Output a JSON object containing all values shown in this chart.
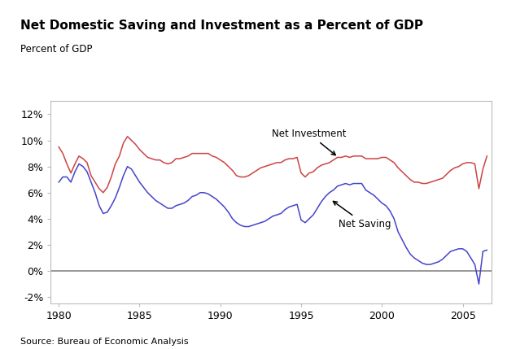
{
  "title": "Net Domestic Saving and Investment as a Percent of GDP",
  "ylabel": "Percent of GDP",
  "source": "Source: Bureau of Economic Analysis",
  "xlim": [
    1979.5,
    2006.8
  ],
  "ylim": [
    -0.025,
    0.13
  ],
  "yticks": [
    -0.02,
    0.0,
    0.02,
    0.04,
    0.06,
    0.08,
    0.1,
    0.12
  ],
  "ytick_labels": [
    "-2%",
    "0%",
    "2%",
    "4%",
    "6%",
    "8%",
    "10%",
    "12%"
  ],
  "xticks": [
    1980,
    1985,
    1990,
    1995,
    2000,
    2005
  ],
  "investment_color": "#cc4444",
  "saving_color": "#4444cc",
  "zero_line_color": "#888888",
  "investment_data": [
    [
      1980.0,
      0.095
    ],
    [
      1980.25,
      0.09
    ],
    [
      1980.5,
      0.082
    ],
    [
      1980.75,
      0.075
    ],
    [
      1981.0,
      0.082
    ],
    [
      1981.25,
      0.088
    ],
    [
      1981.5,
      0.086
    ],
    [
      1981.75,
      0.083
    ],
    [
      1982.0,
      0.073
    ],
    [
      1982.25,
      0.068
    ],
    [
      1982.5,
      0.063
    ],
    [
      1982.75,
      0.06
    ],
    [
      1983.0,
      0.064
    ],
    [
      1983.25,
      0.072
    ],
    [
      1983.5,
      0.082
    ],
    [
      1983.75,
      0.088
    ],
    [
      1984.0,
      0.098
    ],
    [
      1984.25,
      0.103
    ],
    [
      1984.5,
      0.1
    ],
    [
      1984.75,
      0.097
    ],
    [
      1985.0,
      0.093
    ],
    [
      1985.25,
      0.09
    ],
    [
      1985.5,
      0.087
    ],
    [
      1985.75,
      0.086
    ],
    [
      1986.0,
      0.085
    ],
    [
      1986.25,
      0.085
    ],
    [
      1986.5,
      0.083
    ],
    [
      1986.75,
      0.082
    ],
    [
      1987.0,
      0.083
    ],
    [
      1987.25,
      0.086
    ],
    [
      1987.5,
      0.086
    ],
    [
      1987.75,
      0.087
    ],
    [
      1988.0,
      0.088
    ],
    [
      1988.25,
      0.09
    ],
    [
      1988.5,
      0.09
    ],
    [
      1988.75,
      0.09
    ],
    [
      1989.0,
      0.09
    ],
    [
      1989.25,
      0.09
    ],
    [
      1989.5,
      0.088
    ],
    [
      1989.75,
      0.087
    ],
    [
      1990.0,
      0.085
    ],
    [
      1990.25,
      0.083
    ],
    [
      1990.5,
      0.08
    ],
    [
      1990.75,
      0.077
    ],
    [
      1991.0,
      0.073
    ],
    [
      1991.25,
      0.072
    ],
    [
      1991.5,
      0.072
    ],
    [
      1991.75,
      0.073
    ],
    [
      1992.0,
      0.075
    ],
    [
      1992.25,
      0.077
    ],
    [
      1992.5,
      0.079
    ],
    [
      1992.75,
      0.08
    ],
    [
      1993.0,
      0.081
    ],
    [
      1993.25,
      0.082
    ],
    [
      1993.5,
      0.083
    ],
    [
      1993.75,
      0.083
    ],
    [
      1994.0,
      0.085
    ],
    [
      1994.25,
      0.086
    ],
    [
      1994.5,
      0.086
    ],
    [
      1994.75,
      0.087
    ],
    [
      1995.0,
      0.075
    ],
    [
      1995.25,
      0.072
    ],
    [
      1995.5,
      0.075
    ],
    [
      1995.75,
      0.076
    ],
    [
      1996.0,
      0.079
    ],
    [
      1996.25,
      0.081
    ],
    [
      1996.5,
      0.082
    ],
    [
      1996.75,
      0.083
    ],
    [
      1997.0,
      0.085
    ],
    [
      1997.25,
      0.087
    ],
    [
      1997.5,
      0.087
    ],
    [
      1997.75,
      0.088
    ],
    [
      1998.0,
      0.087
    ],
    [
      1998.25,
      0.088
    ],
    [
      1998.5,
      0.088
    ],
    [
      1998.75,
      0.088
    ],
    [
      1999.0,
      0.086
    ],
    [
      1999.25,
      0.086
    ],
    [
      1999.5,
      0.086
    ],
    [
      1999.75,
      0.086
    ],
    [
      2000.0,
      0.087
    ],
    [
      2000.25,
      0.087
    ],
    [
      2000.5,
      0.085
    ],
    [
      2000.75,
      0.083
    ],
    [
      2001.0,
      0.079
    ],
    [
      2001.25,
      0.076
    ],
    [
      2001.5,
      0.073
    ],
    [
      2001.75,
      0.07
    ],
    [
      2002.0,
      0.068
    ],
    [
      2002.25,
      0.068
    ],
    [
      2002.5,
      0.067
    ],
    [
      2002.75,
      0.067
    ],
    [
      2003.0,
      0.068
    ],
    [
      2003.25,
      0.069
    ],
    [
      2003.5,
      0.07
    ],
    [
      2003.75,
      0.071
    ],
    [
      2004.0,
      0.074
    ],
    [
      2004.25,
      0.077
    ],
    [
      2004.5,
      0.079
    ],
    [
      2004.75,
      0.08
    ],
    [
      2005.0,
      0.082
    ],
    [
      2005.25,
      0.083
    ],
    [
      2005.5,
      0.083
    ],
    [
      2005.75,
      0.082
    ],
    [
      2006.0,
      0.063
    ],
    [
      2006.25,
      0.078
    ],
    [
      2006.5,
      0.088
    ]
  ],
  "saving_data": [
    [
      1980.0,
      0.068
    ],
    [
      1980.25,
      0.072
    ],
    [
      1980.5,
      0.072
    ],
    [
      1980.75,
      0.068
    ],
    [
      1981.0,
      0.076
    ],
    [
      1981.25,
      0.082
    ],
    [
      1981.5,
      0.08
    ],
    [
      1981.75,
      0.076
    ],
    [
      1982.0,
      0.068
    ],
    [
      1982.25,
      0.06
    ],
    [
      1982.5,
      0.05
    ],
    [
      1982.75,
      0.044
    ],
    [
      1983.0,
      0.045
    ],
    [
      1983.25,
      0.05
    ],
    [
      1983.5,
      0.056
    ],
    [
      1983.75,
      0.064
    ],
    [
      1984.0,
      0.073
    ],
    [
      1984.25,
      0.08
    ],
    [
      1984.5,
      0.078
    ],
    [
      1984.75,
      0.073
    ],
    [
      1985.0,
      0.068
    ],
    [
      1985.25,
      0.064
    ],
    [
      1985.5,
      0.06
    ],
    [
      1985.75,
      0.057
    ],
    [
      1986.0,
      0.054
    ],
    [
      1986.25,
      0.052
    ],
    [
      1986.5,
      0.05
    ],
    [
      1986.75,
      0.048
    ],
    [
      1987.0,
      0.048
    ],
    [
      1987.25,
      0.05
    ],
    [
      1987.5,
      0.051
    ],
    [
      1987.75,
      0.052
    ],
    [
      1988.0,
      0.054
    ],
    [
      1988.25,
      0.057
    ],
    [
      1988.5,
      0.058
    ],
    [
      1988.75,
      0.06
    ],
    [
      1989.0,
      0.06
    ],
    [
      1989.25,
      0.059
    ],
    [
      1989.5,
      0.057
    ],
    [
      1989.75,
      0.055
    ],
    [
      1990.0,
      0.052
    ],
    [
      1990.25,
      0.049
    ],
    [
      1990.5,
      0.045
    ],
    [
      1990.75,
      0.04
    ],
    [
      1991.0,
      0.037
    ],
    [
      1991.25,
      0.035
    ],
    [
      1991.5,
      0.034
    ],
    [
      1991.75,
      0.034
    ],
    [
      1992.0,
      0.035
    ],
    [
      1992.25,
      0.036
    ],
    [
      1992.5,
      0.037
    ],
    [
      1992.75,
      0.038
    ],
    [
      1993.0,
      0.04
    ],
    [
      1993.25,
      0.042
    ],
    [
      1993.5,
      0.043
    ],
    [
      1993.75,
      0.044
    ],
    [
      1994.0,
      0.047
    ],
    [
      1994.25,
      0.049
    ],
    [
      1994.5,
      0.05
    ],
    [
      1994.75,
      0.051
    ],
    [
      1995.0,
      0.039
    ],
    [
      1995.25,
      0.037
    ],
    [
      1995.5,
      0.04
    ],
    [
      1995.75,
      0.043
    ],
    [
      1996.0,
      0.048
    ],
    [
      1996.25,
      0.053
    ],
    [
      1996.5,
      0.057
    ],
    [
      1996.75,
      0.06
    ],
    [
      1997.0,
      0.062
    ],
    [
      1997.25,
      0.065
    ],
    [
      1997.5,
      0.066
    ],
    [
      1997.75,
      0.067
    ],
    [
      1998.0,
      0.066
    ],
    [
      1998.25,
      0.067
    ],
    [
      1998.5,
      0.067
    ],
    [
      1998.75,
      0.067
    ],
    [
      1999.0,
      0.062
    ],
    [
      1999.25,
      0.06
    ],
    [
      1999.5,
      0.058
    ],
    [
      1999.75,
      0.055
    ],
    [
      2000.0,
      0.052
    ],
    [
      2000.25,
      0.05
    ],
    [
      2000.5,
      0.046
    ],
    [
      2000.75,
      0.04
    ],
    [
      2001.0,
      0.03
    ],
    [
      2001.25,
      0.024
    ],
    [
      2001.5,
      0.018
    ],
    [
      2001.75,
      0.013
    ],
    [
      2002.0,
      0.01
    ],
    [
      2002.25,
      0.008
    ],
    [
      2002.5,
      0.006
    ],
    [
      2002.75,
      0.005
    ],
    [
      2003.0,
      0.005
    ],
    [
      2003.25,
      0.006
    ],
    [
      2003.5,
      0.007
    ],
    [
      2003.75,
      0.009
    ],
    [
      2004.0,
      0.012
    ],
    [
      2004.25,
      0.015
    ],
    [
      2004.5,
      0.016
    ],
    [
      2004.75,
      0.017
    ],
    [
      2005.0,
      0.017
    ],
    [
      2005.25,
      0.015
    ],
    [
      2005.5,
      0.01
    ],
    [
      2005.75,
      0.005
    ],
    [
      2006.0,
      -0.01
    ],
    [
      2006.25,
      0.015
    ],
    [
      2006.5,
      0.016
    ]
  ]
}
